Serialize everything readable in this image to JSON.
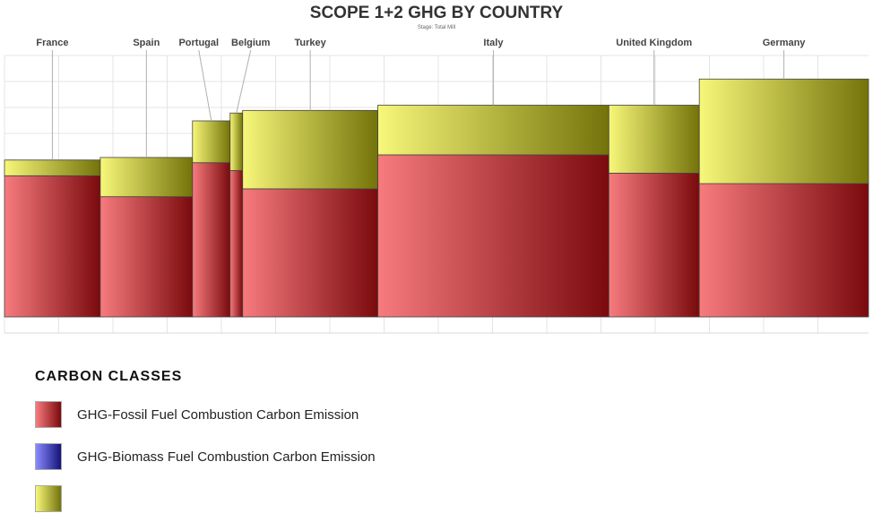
{
  "chart_title": "SCOPE 1+2 GHG BY COUNTRY",
  "chart_subtitle": "Stage: Total Mill",
  "legend": {
    "title": "CARBON CLASSES",
    "items": [
      {
        "label": "GHG-Fossil Fuel Combustion Carbon Emission",
        "color_light": "#f77b7e",
        "color_dark": "#7a0a0d"
      },
      {
        "label": "GHG-Biomass Fuel Combustion Carbon Emission",
        "color_light": "#8a8aff",
        "color_dark": "#13137a"
      },
      {
        "label": "",
        "color_light": "#f7f77a",
        "color_dark": "#73730a"
      }
    ]
  },
  "chart_data": {
    "type": "bar",
    "subtype": "variable-width stacked (marimekko)",
    "title": "SCOPE 1+2 GHG BY COUNTRY",
    "subtitle": "Stage: Total Mill",
    "categories": [
      "France",
      "Spain",
      "Portugal",
      "Belgium",
      "Turkey",
      "Italy",
      "United Kingdom",
      "Germany"
    ],
    "widths": [
      107,
      103,
      42,
      14,
      151,
      258,
      101,
      189
    ],
    "series": [
      {
        "name": "GHG-Fossil Fuel Combustion Carbon Emission",
        "values": [
          54,
          46,
          59,
          56,
          49,
          62,
          55,
          51
        ]
      },
      {
        "name": "GHG-Biomass Fuel Combustion Carbon Emission",
        "values": [
          0,
          0,
          0,
          0,
          0,
          0,
          0,
          0
        ]
      },
      {
        "name": "",
        "values": [
          6,
          15,
          16,
          22,
          30,
          19,
          26,
          40
        ]
      }
    ],
    "ylim": [
      0,
      100
    ],
    "grid": true
  }
}
